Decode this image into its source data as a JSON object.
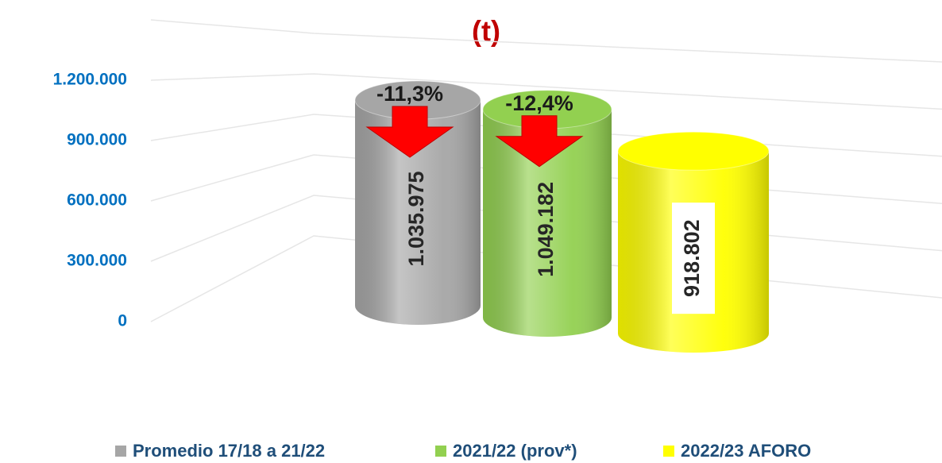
{
  "chart_data": {
    "type": "cylinder",
    "title": "(t)",
    "series": [
      {
        "name": "Promedio 17/18 a 21/22",
        "color": "#a6a6a6",
        "values": [
          1035975
        ],
        "value_labels": [
          "1.035.975"
        ]
      },
      {
        "name": "2021/22 (prov*)",
        "color": "#92d050",
        "values": [
          1049182
        ],
        "value_labels": [
          "1.049.182"
        ]
      },
      {
        "name": "2022/23 AFORO",
        "color": "#ffff00",
        "values": [
          918802
        ],
        "value_labels": [
          "918.802"
        ]
      }
    ],
    "annotations": [
      "-11,3%",
      "-12,4%"
    ],
    "ylim": [
      0,
      1500000
    ],
    "yticks": [
      0,
      {
        "value": 300000,
        "label": "300.000"
      },
      {
        "value": 600000,
        "label": "600.000"
      },
      {
        "value": 900000,
        "label": "900.000"
      },
      {
        "value": 1200000,
        "label": "1.200.000"
      }
    ],
    "grid": true,
    "legend": "bottom"
  }
}
